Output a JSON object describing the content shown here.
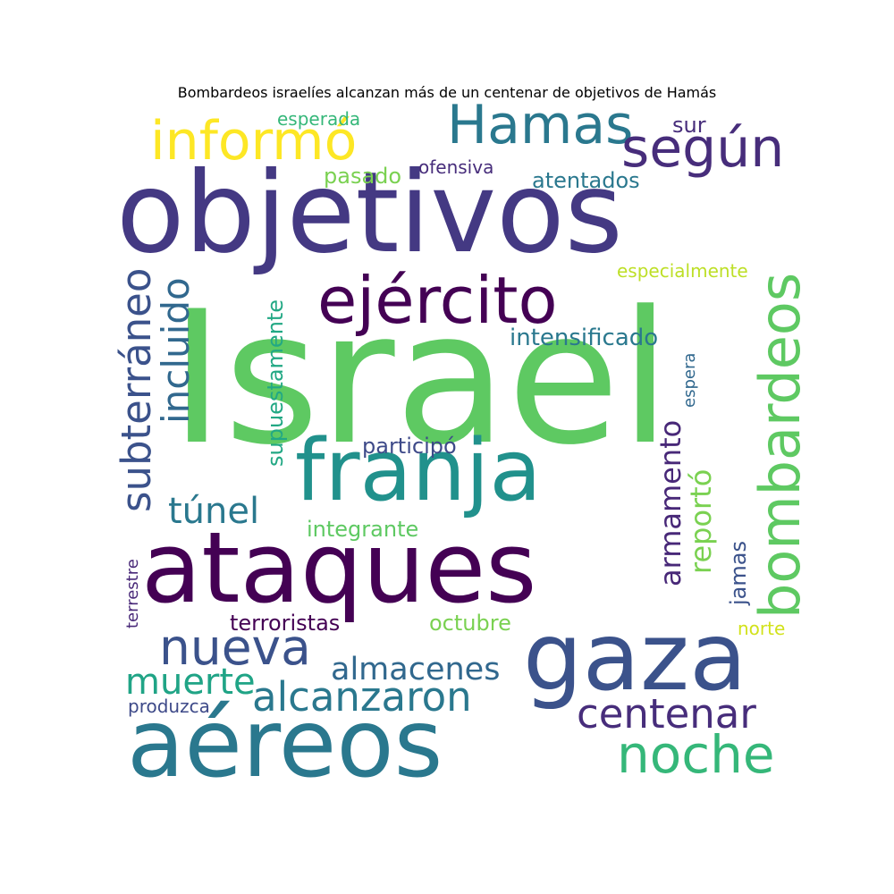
{
  "title": "Bombardeos israelíes alcanzan más de un centenar de objetivos de Hamás",
  "words": [
    {
      "text": "Israel",
      "color": "#5ec962"
    },
    {
      "text": "objetivos",
      "color": "#443983"
    },
    {
      "text": "ataques",
      "color": "#440154"
    },
    {
      "text": "aéreos",
      "color": "#2a788e"
    },
    {
      "text": "gaza",
      "color": "#3b528b"
    },
    {
      "text": "franja",
      "color": "#21918c"
    },
    {
      "text": "ejército",
      "color": "#440154"
    },
    {
      "text": "informó",
      "color": "#fde725"
    },
    {
      "text": "Hamas",
      "color": "#2a788e"
    },
    {
      "text": "según",
      "color": "#472d7b"
    },
    {
      "text": "bombardeos",
      "color": "#5ec962"
    },
    {
      "text": "noche",
      "color": "#35b779"
    },
    {
      "text": "nueva",
      "color": "#3b528b"
    },
    {
      "text": "alcanzaron",
      "color": "#2a788e"
    },
    {
      "text": "centenar",
      "color": "#472d7b"
    },
    {
      "text": "subterráneo",
      "color": "#3b528b"
    },
    {
      "text": "incluido",
      "color": "#31688e"
    },
    {
      "text": "muerte",
      "color": "#20a486"
    },
    {
      "text": "almacenes",
      "color": "#31688e"
    },
    {
      "text": "túnel",
      "color": "#2a788e"
    },
    {
      "text": "armamento",
      "color": "#482878"
    },
    {
      "text": "reportó",
      "color": "#7ad151"
    },
    {
      "text": "intensificado",
      "color": "#2a788e"
    },
    {
      "text": "atentados",
      "color": "#2a788e"
    },
    {
      "text": "pasado",
      "color": "#7ad151"
    },
    {
      "text": "ofensiva",
      "color": "#472d7b"
    },
    {
      "text": "esperada",
      "color": "#35b779"
    },
    {
      "text": "sur",
      "color": "#472d7b"
    },
    {
      "text": "especialmente",
      "color": "#bddf26"
    },
    {
      "text": "participó",
      "color": "#3e4a89"
    },
    {
      "text": "supuestamente",
      "color": "#22a884"
    },
    {
      "text": "integrante",
      "color": "#5ec962"
    },
    {
      "text": "terroristas",
      "color": "#440154"
    },
    {
      "text": "octubre",
      "color": "#7ad151"
    },
    {
      "text": "jamas",
      "color": "#3b528b"
    },
    {
      "text": "norte",
      "color": "#d2e21b"
    },
    {
      "text": "espera",
      "color": "#31688e"
    },
    {
      "text": "terrestre",
      "color": "#482878"
    },
    {
      "text": "produzca",
      "color": "#3e4a89"
    }
  ]
}
